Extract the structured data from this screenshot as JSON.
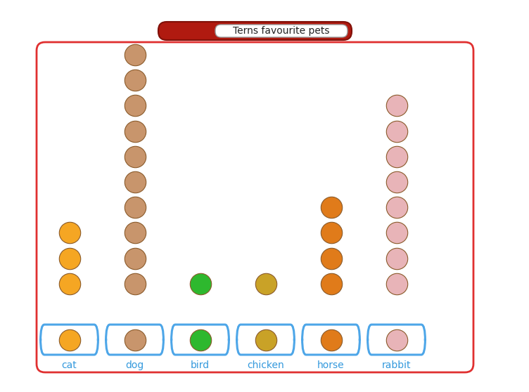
{
  "chart_data": {
    "type": "pictogram",
    "title": "Terns favourite pets",
    "categories": [
      "cat",
      "dog",
      "bird",
      "chicken",
      "horse",
      "rabbit"
    ],
    "values": [
      3,
      10,
      1,
      1,
      4,
      8
    ],
    "colors": [
      "#f5a623",
      "#c8956c",
      "#2eb82e",
      "#c9a227",
      "#e07b1a",
      "#e8b4b8"
    ],
    "marker": "o"
  }
}
